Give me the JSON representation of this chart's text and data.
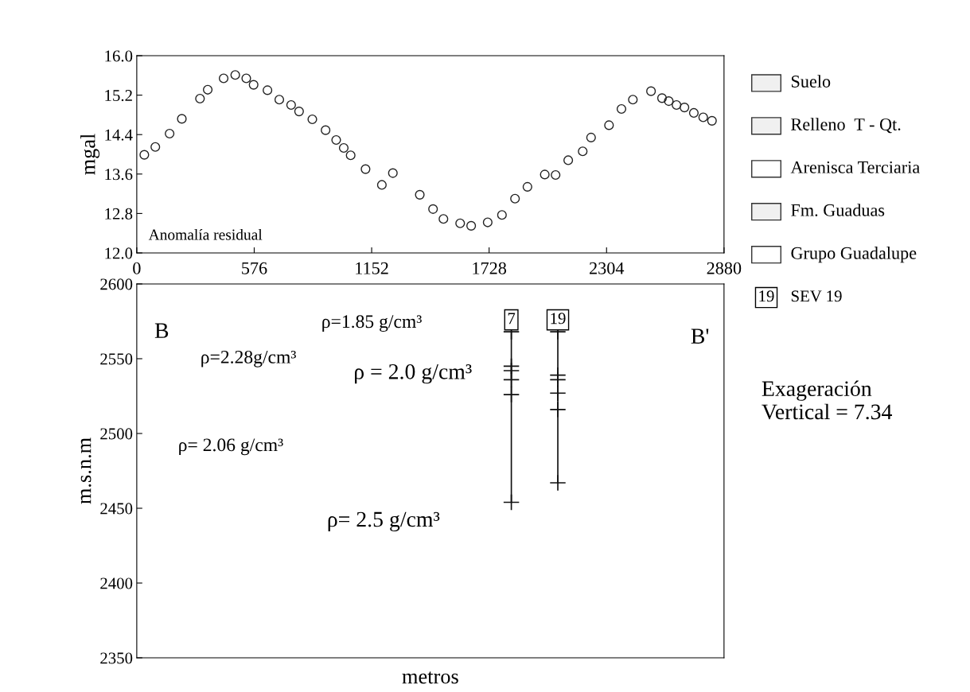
{
  "chart_data": [
    {
      "type": "scatter",
      "ylabel": "mgal",
      "annotations": [
        "Anomalía residual"
      ],
      "marker": "circle",
      "grid": false,
      "xlim": [
        0,
        2880
      ],
      "xticks": [
        0,
        576,
        1152,
        1728,
        2304,
        2880
      ],
      "ylim": [
        12.0,
        16.0
      ],
      "yticks": [
        {
          "value": 12.0,
          "label": "12.0"
        },
        {
          "value": 12.8,
          "label": "12.8"
        },
        {
          "value": 13.6,
          "label": "13.6"
        },
        {
          "value": 14.4,
          "label": "14.4"
        },
        {
          "value": 15.2,
          "label": "15.2"
        },
        {
          "value": 16.0,
          "label": "16.0"
        }
      ],
      "series": [
        {
          "color": "#222222",
          "x": [
            37,
            91,
            161,
            221,
            310,
            348,
            426,
            483,
            537,
            573,
            641,
            699,
            757,
            796,
            861,
            926,
            978,
            1015,
            1049,
            1122,
            1202,
            1256,
            1388,
            1453,
            1504,
            1586,
            1640,
            1721,
            1791,
            1855,
            1916,
            2001,
            2054,
            2116,
            2187,
            2228,
            2316,
            2377,
            2433,
            2522,
            2576,
            2609,
            2647,
            2686,
            2732,
            2778,
            2821
          ],
          "values": [
            13.99,
            14.15,
            14.42,
            14.72,
            15.13,
            15.31,
            15.54,
            15.61,
            15.54,
            15.41,
            15.3,
            15.11,
            15.0,
            14.87,
            14.71,
            14.49,
            14.29,
            14.13,
            13.98,
            13.7,
            13.38,
            13.62,
            13.18,
            12.89,
            12.69,
            12.6,
            12.55,
            12.62,
            12.77,
            13.1,
            13.34,
            13.59,
            13.58,
            13.88,
            14.06,
            14.34,
            14.59,
            14.92,
            15.11,
            15.28,
            15.14,
            15.08,
            15.0,
            14.95,
            14.84,
            14.75,
            14.68
          ]
        }
      ]
    },
    {
      "type": "line",
      "xlabel": "metros",
      "ylabel": "m.s.n.m",
      "grid": false,
      "tick_labels": "y",
      "marker": "cross",
      "xlim": [
        0,
        2880
      ],
      "ylim": [
        2350,
        2600
      ],
      "yticks": [
        2350,
        2400,
        2450,
        2500,
        2550,
        2600
      ],
      "series": [
        {
          "color": "#111111",
          "x": [
            1837,
            1837,
            1837,
            1837,
            1837,
            1837
          ],
          "values": [
            2568,
            2545,
            2542,
            2536,
            2526,
            2454
          ]
        },
        {
          "color": "#111111",
          "x": [
            2065,
            2065,
            2065,
            2065,
            2065,
            2065
          ],
          "values": [
            2568,
            2539,
            2536,
            2527,
            2516,
            2467
          ]
        }
      ],
      "annotations": [
        {
          "text": "7",
          "x": 1837,
          "y": 2568
        },
        {
          "text": "19",
          "x": 2065,
          "y": 2568
        },
        "B",
        "B'",
        "ρ=1.85 g/cm³",
        "ρ=2.28g/cm³",
        "ρ = 2.0 g/cm³",
        "ρ= 2.06 g/cm³",
        "ρ= 2.5 g/cm³",
        "Suelo",
        "Relleno  T - Qt.",
        "Arenisca Terciaria",
        "Fm. Guaduas",
        "Grupo Guadalupe",
        "19",
        "SEV 19",
        "Exageración\nVertical = 7.34"
      ]
    }
  ]
}
